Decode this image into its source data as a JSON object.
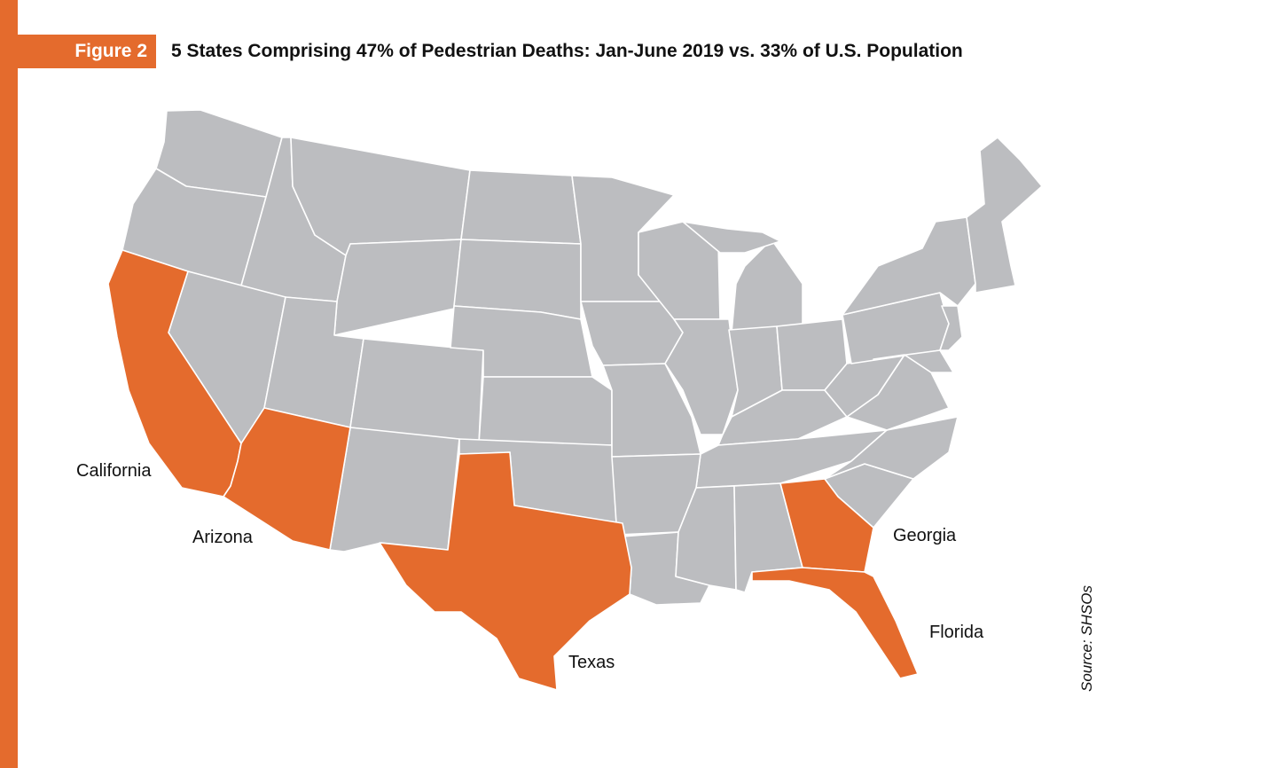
{
  "figure_label": "Figure 2",
  "title": "5 States Comprising 47% of Pedestrian Deaths: Jan-June 2019 vs. 33% of U.S. Population",
  "source_note": "Source: SHSOs",
  "colors": {
    "accent": "#e46b2d",
    "state_fill": "#bcbdc0",
    "state_border": "#ffffff",
    "text": "#111111"
  },
  "highlighted_states": [
    {
      "name": "California",
      "label": "California"
    },
    {
      "name": "Arizona",
      "label": "Arizona"
    },
    {
      "name": "Texas",
      "label": "Texas"
    },
    {
      "name": "Georgia",
      "label": "Georgia"
    },
    {
      "name": "Florida",
      "label": "Florida"
    }
  ]
}
